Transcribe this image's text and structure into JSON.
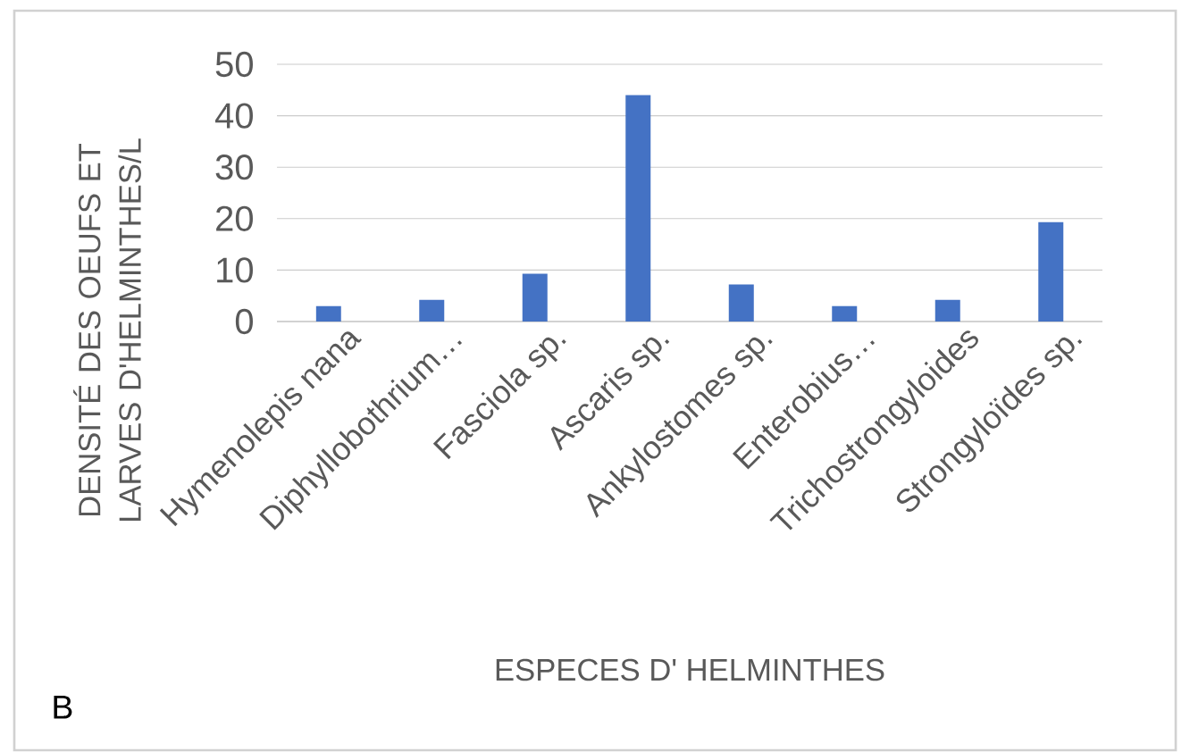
{
  "chart_data": {
    "type": "bar",
    "xlabel": "ESPECES D' HELMINTHES",
    "ylabel": "DENSITÉ DES OEUFS ET LARVES D'HELMINTHES/L",
    "categories": [
      "Hymenolepis nana",
      "Diphyllobothrium…",
      "Fasciola sp.",
      "Ascaris sp.",
      "Ankylostomes sp.",
      "Enterobius…",
      "Trichostrongyloides",
      "Strongyloïdes sp."
    ],
    "values": [
      3,
      4.2,
      9.3,
      44,
      7.2,
      3,
      4.2,
      19.3
    ],
    "color": "#4472c4",
    "ylim": [
      0,
      50
    ],
    "yticks": [
      0,
      10,
      20,
      30,
      40,
      50
    ],
    "grid": "y",
    "annotations": [
      "B"
    ]
  }
}
